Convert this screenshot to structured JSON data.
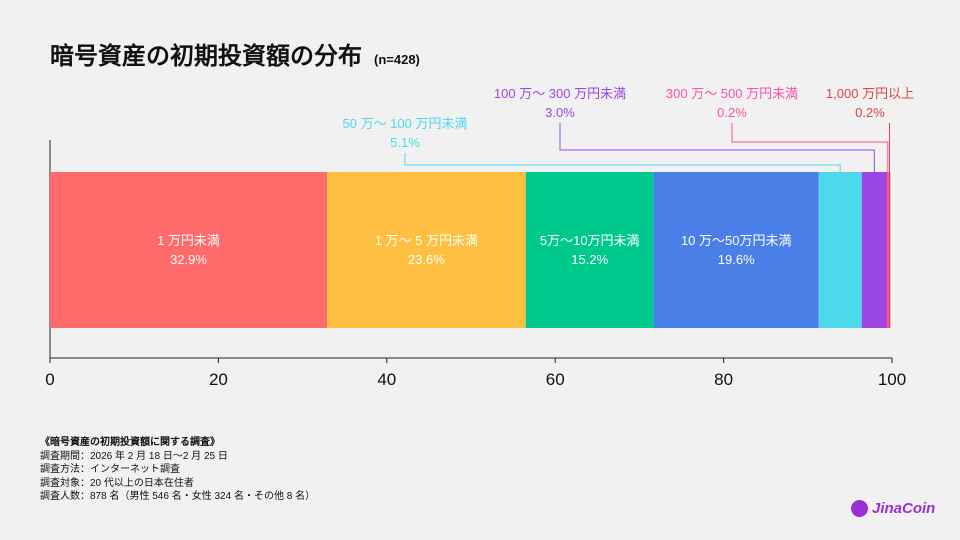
{
  "chart_data": {
    "type": "bar",
    "orientation": "horizontal-stacked",
    "title": "暗号資産の初期投資額の分布",
    "subtitle": "(n=428)",
    "xlim": [
      0,
      100
    ],
    "xticks": [
      0,
      20,
      40,
      60,
      80,
      100
    ],
    "series": [
      {
        "name": "1 万円未満",
        "value": 32.9,
        "label": "32.9%",
        "color": "#ff6b6b"
      },
      {
        "name": "1 万〜 5 万円未満",
        "value": 23.6,
        "label": "23.6%",
        "color": "#ffc042"
      },
      {
        "name": "5万〜10万円未満",
        "value": 15.2,
        "label": "15.2%",
        "color": "#00c98d"
      },
      {
        "name": "10 万〜50万円未満",
        "value": 19.6,
        "label": "19.6%",
        "color": "#4a7fe8"
      },
      {
        "name": "50 万〜 100 万円未満",
        "value": 5.1,
        "label": "5.1%",
        "color": "#4dd9ec"
      },
      {
        "name": "100 万〜 300 万円未満",
        "value": 3.0,
        "label": "3.0%",
        "color": "#9b45e4"
      },
      {
        "name": "300 万〜 500 万円未満",
        "value": 0.2,
        "label": "0.2%",
        "color": "#ff4fa8"
      },
      {
        "name": "1,000 万円以上",
        "value": 0.2,
        "label": "0.2%",
        "color": "#d94545"
      }
    ]
  },
  "notes": [
    "《暗号資産の初期投資額に関する調査》",
    "調査期間：2026 年 2 月 18 日〜2 月 25 日",
    "調査方法：インターネット調査",
    "調査対象：20 代以上の日本在住者",
    "調査人数：878 名（男性 546 名・女性 324 名・その他 8 名）"
  ],
  "logo": "JinaCoin"
}
